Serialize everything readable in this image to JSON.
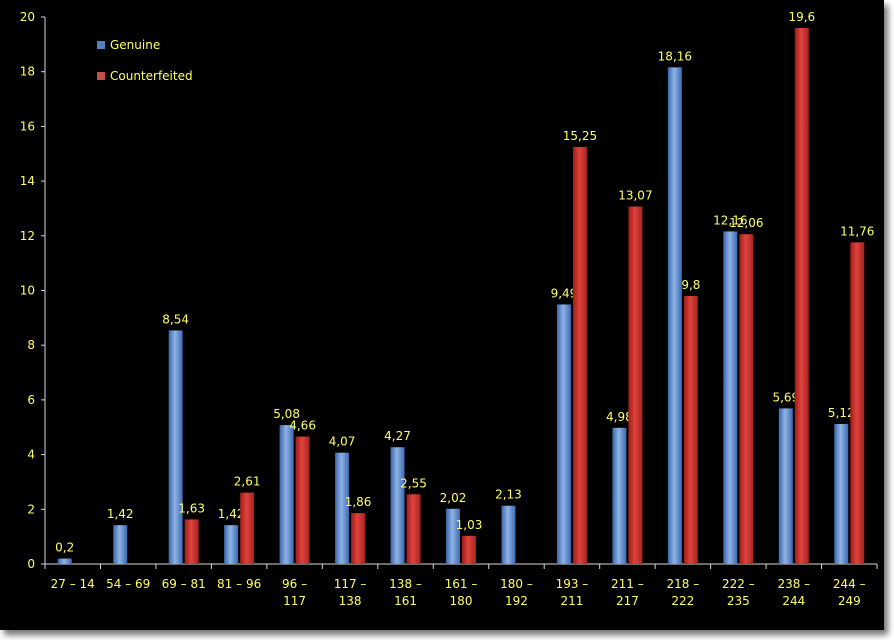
{
  "chart_data": {
    "type": "bar",
    "title": "",
    "xlabel": "",
    "ylabel": "",
    "ylim": [
      0,
      20
    ],
    "y_ticks": [
      "0",
      "2",
      "4",
      "6",
      "8",
      "10",
      "12",
      "14",
      "16",
      "18",
      "20"
    ],
    "grid": false,
    "legend_position": "top-left",
    "categories": [
      [
        "27 – 14"
      ],
      [
        "54 – 69"
      ],
      [
        "69 – 81"
      ],
      [
        "81 – 96"
      ],
      [
        "96 –",
        "117"
      ],
      [
        "117 –",
        "138"
      ],
      [
        "138 –",
        "161"
      ],
      [
        "161 –",
        "180"
      ],
      [
        "180 –",
        "192"
      ],
      [
        "193 –",
        "211"
      ],
      [
        "211 –",
        "217"
      ],
      [
        "218 –",
        "222"
      ],
      [
        "222 –",
        "235"
      ],
      [
        "238 –",
        "244"
      ],
      [
        "244 –",
        "249"
      ]
    ],
    "series": [
      {
        "name": "Genuine",
        "color": "#4f81bd",
        "values": [
          0.2,
          1.42,
          8.54,
          1.42,
          5.08,
          4.07,
          4.27,
          2.02,
          2.13,
          9.49,
          4.98,
          18.16,
          12.16,
          5.69,
          5.12
        ],
        "labels": [
          "0,2",
          "1,42",
          "8,54",
          "1,42",
          "5,08",
          "4,07",
          "4,27",
          "2,02",
          "2,13",
          "9,49",
          "4,98",
          "18,16",
          "12,16",
          "5,69",
          "5,12"
        ]
      },
      {
        "name": "Counterfeited",
        "color": "#c0504d",
        "values": [
          null,
          null,
          1.63,
          2.61,
          4.66,
          1.86,
          2.55,
          1.03,
          null,
          15.25,
          13.07,
          9.8,
          12.06,
          19.6,
          11.76
        ],
        "labels": [
          null,
          null,
          "1,63",
          "2,61",
          "4,66",
          "1,86",
          "2,55",
          "1,03",
          null,
          "15,25",
          "13,07",
          "9,8",
          "12,06",
          "19,6",
          "11,76"
        ]
      }
    ]
  }
}
